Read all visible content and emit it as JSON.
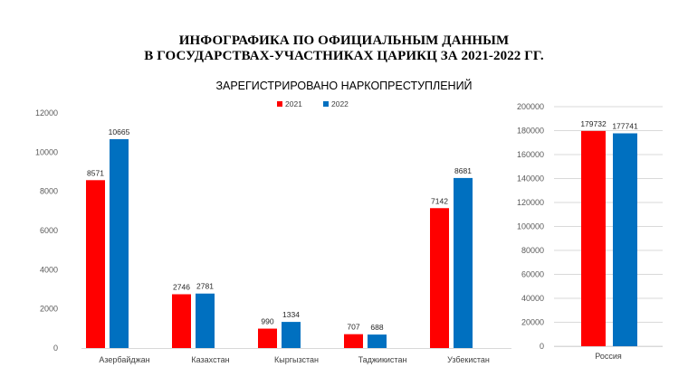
{
  "title_line1": "ИНФОГРАФИКА ПО ОФИЦИАЛЬНЫМ ДАННЫМ",
  "title_line2": "В ГОСУДАРСТВАХ-УЧАСТНИКАХ  ЦАРИКЦ ЗА 2021-2022 ГГ.",
  "subtitle": "ЗАРЕГИСТРИРОВАНО НАРКОПРЕСТУПЛЕНИЙ",
  "colors": {
    "2021": "#ff0000",
    "2022": "#0070c0",
    "grid": "#d9d9d9"
  },
  "chart_data": [
    {
      "type": "bar",
      "categories": [
        "Азербайджан",
        "Казахстан",
        "Кыргызстан",
        "Таджикистан",
        "Узбекистан"
      ],
      "series": [
        {
          "name": "2021",
          "values": [
            8571,
            2746,
            990,
            707,
            7142
          ]
        },
        {
          "name": "2022",
          "values": [
            10665,
            2781,
            1334,
            688,
            8681
          ]
        }
      ],
      "yticks": [
        "0",
        "2000",
        "4000",
        "6000",
        "8000",
        "10000",
        "12000"
      ],
      "ylim": [
        0,
        12000
      ],
      "legend": "top-center",
      "grid": false
    },
    {
      "type": "bar",
      "categories": [
        "Россия"
      ],
      "series": [
        {
          "name": "2021",
          "values": [
            179732
          ]
        },
        {
          "name": "2022",
          "values": [
            177741
          ]
        }
      ],
      "yticks": [
        "0",
        "20000",
        "40000",
        "60000",
        "80000",
        "100000",
        "120000",
        "140000",
        "160000",
        "180000",
        "200000"
      ],
      "ylim": [
        0,
        200000
      ],
      "grid": true
    }
  ]
}
